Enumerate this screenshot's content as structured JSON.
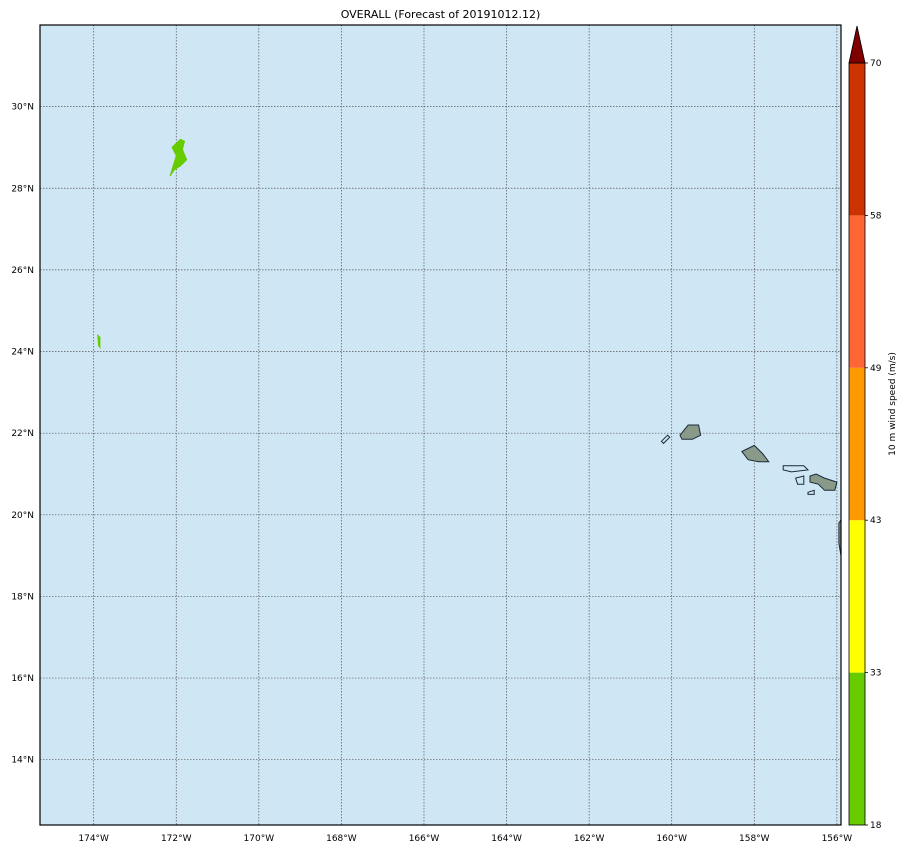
{
  "title": "OVERALL (Forecast of 20191012.12)",
  "map": {
    "lon_range": [
      -175.3,
      -155.9
    ],
    "lat_range": [
      12.4,
      32.0
    ],
    "ocean_color": "#cfe6f5",
    "grid": "dotted",
    "lon_ticks": [
      -174,
      -172,
      -170,
      -168,
      -166,
      -164,
      -162,
      -160,
      -158,
      -156
    ],
    "lat_ticks": [
      14,
      16,
      18,
      20,
      22,
      24,
      26,
      28,
      30
    ],
    "lon_tick_labels": [
      "174°W",
      "172°W",
      "170°W",
      "168°W",
      "166°W",
      "164°W",
      "162°W",
      "160°W",
      "158°W",
      "156°W"
    ],
    "lat_tick_labels": [
      "14°N",
      "16°N",
      "18°N",
      "20°N",
      "22°N",
      "24°N",
      "26°N",
      "28°N",
      "30°N"
    ],
    "wind_features": [
      {
        "name": "wind-patch-north",
        "color": "#66cc00",
        "polygon": [
          [
            -172.15,
            28.3
          ],
          [
            -172.0,
            28.8
          ],
          [
            -172.1,
            29.0
          ],
          [
            -171.9,
            29.2
          ],
          [
            -171.8,
            29.15
          ],
          [
            -171.85,
            28.95
          ],
          [
            -171.75,
            28.7
          ],
          [
            -171.9,
            28.55
          ],
          [
            -172.05,
            28.45
          ]
        ]
      },
      {
        "name": "wind-patch-west",
        "color": "#66cc00",
        "polygon": [
          [
            -173.9,
            24.4
          ],
          [
            -173.85,
            24.35
          ],
          [
            -173.85,
            24.1
          ],
          [
            -173.88,
            24.15
          ]
        ]
      }
    ],
    "islands": [
      {
        "name": "niihau",
        "polygon": [
          [
            -160.25,
            21.8
          ],
          [
            -160.1,
            21.95
          ],
          [
            -160.05,
            21.9
          ],
          [
            -160.2,
            21.75
          ]
        ]
      },
      {
        "name": "kauai",
        "polygon": [
          [
            -159.8,
            21.95
          ],
          [
            -159.6,
            22.2
          ],
          [
            -159.35,
            22.2
          ],
          [
            -159.3,
            21.95
          ],
          [
            -159.5,
            21.85
          ],
          [
            -159.75,
            21.85
          ]
        ]
      },
      {
        "name": "oahu",
        "polygon": [
          [
            -158.3,
            21.55
          ],
          [
            -158.0,
            21.7
          ],
          [
            -157.8,
            21.5
          ],
          [
            -157.65,
            21.3
          ],
          [
            -157.9,
            21.3
          ],
          [
            -158.15,
            21.35
          ]
        ]
      },
      {
        "name": "molokai",
        "polygon": [
          [
            -157.3,
            21.2
          ],
          [
            -156.8,
            21.2
          ],
          [
            -156.7,
            21.1
          ],
          [
            -157.1,
            21.05
          ],
          [
            -157.3,
            21.1
          ]
        ]
      },
      {
        "name": "lanai",
        "polygon": [
          [
            -157.0,
            20.9
          ],
          [
            -156.8,
            20.95
          ],
          [
            -156.8,
            20.75
          ],
          [
            -156.95,
            20.75
          ]
        ]
      },
      {
        "name": "kahoolawe",
        "polygon": [
          [
            -156.7,
            20.55
          ],
          [
            -156.55,
            20.6
          ],
          [
            -156.55,
            20.5
          ],
          [
            -156.7,
            20.5
          ]
        ]
      },
      {
        "name": "maui",
        "polygon": [
          [
            -156.65,
            20.95
          ],
          [
            -156.5,
            21.0
          ],
          [
            -156.3,
            20.9
          ],
          [
            -156.0,
            20.8
          ],
          [
            -156.05,
            20.6
          ],
          [
            -156.3,
            20.6
          ],
          [
            -156.45,
            20.75
          ],
          [
            -156.65,
            20.8
          ]
        ]
      },
      {
        "name": "hawaii",
        "polygon": [
          [
            -155.95,
            19.8
          ],
          [
            -155.85,
            19.95
          ],
          [
            -155.65,
            20.05
          ],
          [
            -155.6,
            19.3
          ],
          [
            -155.9,
            19.0
          ],
          [
            -155.95,
            19.3
          ]
        ]
      }
    ]
  },
  "colorbar": {
    "label": "10 m wind speed (m/s)",
    "tick_labels": [
      "18",
      "33",
      "43",
      "49",
      "58",
      "70"
    ],
    "bins": [
      {
        "from": 18,
        "to": 33,
        "color": "#66cc00"
      },
      {
        "from": 33,
        "to": 43,
        "color": "#ffff00"
      },
      {
        "from": 43,
        "to": 49,
        "color": "#ff9900"
      },
      {
        "from": 49,
        "to": 58,
        "color": "#ff6633"
      },
      {
        "from": 58,
        "to": 70,
        "color": "#cc3300"
      }
    ],
    "extend_color": "#800000"
  }
}
